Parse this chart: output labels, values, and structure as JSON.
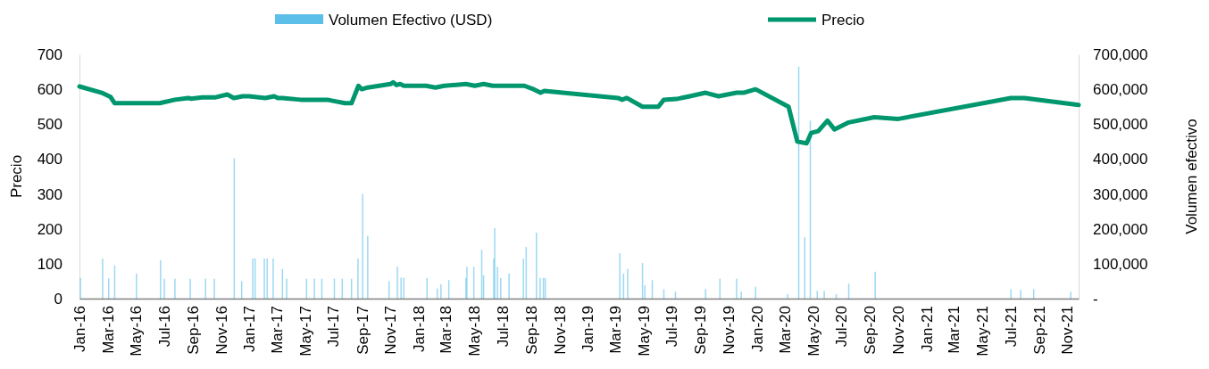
{
  "chart_data": {
    "type": "bar",
    "ylabel": "Precio",
    "y2label": "Volumen efectivo",
    "legend": "top",
    "grid": false,
    "xlim": [
      "2016-01-01",
      "2021-11-26"
    ],
    "xticks": [
      {
        "value": "2016-01",
        "label": "Jan-16"
      },
      {
        "value": "2016-03",
        "label": "Mar-16"
      },
      {
        "value": "2016-05",
        "label": "May-16"
      },
      {
        "value": "2016-07",
        "label": "Jul-16"
      },
      {
        "value": "2016-09",
        "label": "Sep-16"
      },
      {
        "value": "2016-11",
        "label": "Nov-16"
      },
      {
        "value": "2017-01",
        "label": "Jan-17"
      },
      {
        "value": "2017-03",
        "label": "Mar-17"
      },
      {
        "value": "2017-05",
        "label": "May-17"
      },
      {
        "value": "2017-07",
        "label": "Jul-17"
      },
      {
        "value": "2017-09",
        "label": "Sep-17"
      },
      {
        "value": "2017-11",
        "label": "Nov-17"
      },
      {
        "value": "2018-01",
        "label": "Jan-18"
      },
      {
        "value": "2018-03",
        "label": "Mar-18"
      },
      {
        "value": "2018-05",
        "label": "May-18"
      },
      {
        "value": "2018-07",
        "label": "Jul-18"
      },
      {
        "value": "2018-09",
        "label": "Sep-18"
      },
      {
        "value": "2018-11",
        "label": "Nov-18"
      },
      {
        "value": "2019-01",
        "label": "Jan-19"
      },
      {
        "value": "2019-03",
        "label": "Mar-19"
      },
      {
        "value": "2019-05",
        "label": "May-19"
      },
      {
        "value": "2019-07",
        "label": "Jul-19"
      },
      {
        "value": "2019-09",
        "label": "Sep-19"
      },
      {
        "value": "2019-11",
        "label": "Nov-19"
      },
      {
        "value": "2020-01",
        "label": "Jan-20"
      },
      {
        "value": "2020-03",
        "label": "Mar-20"
      },
      {
        "value": "2020-05",
        "label": "May-20"
      },
      {
        "value": "2020-07",
        "label": "Jul-20"
      },
      {
        "value": "2020-09",
        "label": "Sep-20"
      },
      {
        "value": "2020-11",
        "label": "Nov-20"
      },
      {
        "value": "2021-01",
        "label": "Jan-21"
      },
      {
        "value": "2021-03",
        "label": "Mar-21"
      },
      {
        "value": "2021-05",
        "label": "May-21"
      },
      {
        "value": "2021-07",
        "label": "Jul-21"
      },
      {
        "value": "2021-09",
        "label": "Sep-21"
      },
      {
        "value": "2021-11",
        "label": "Nov-21"
      }
    ],
    "ylim": [
      0,
      700
    ],
    "yticks": [
      0,
      100,
      200,
      300,
      400,
      500,
      600,
      700
    ],
    "y2lim": [
      0,
      700000
    ],
    "y2ticks": [
      {
        "value": 0,
        "label": "-"
      },
      {
        "value": 100000,
        "label": "100,000"
      },
      {
        "value": 200000,
        "label": "200,000"
      },
      {
        "value": 300000,
        "label": "300,000"
      },
      {
        "value": 400000,
        "label": "400,000"
      },
      {
        "value": 500000,
        "label": "500,000"
      },
      {
        "value": 600000,
        "label": "600,000"
      },
      {
        "value": 700000,
        "label": "700,000"
      }
    ],
    "series": [
      {
        "name": "Volumen Efectivo (USD)",
        "axis": "y2",
        "color": "#5bbfea",
        "x": [
          "2016-01-03",
          "2016-02-20",
          "2016-03-04",
          "2016-03-17",
          "2016-05-03",
          "2016-06-24",
          "2016-07-02",
          "2016-07-25",
          "2016-08-27",
          "2016-09-29",
          "2016-10-18",
          "2016-11-30",
          "2016-12-16",
          "2017-01-09",
          "2017-01-14",
          "2017-02-03",
          "2017-02-09",
          "2017-02-22",
          "2017-03-14",
          "2017-03-23",
          "2017-05-05",
          "2017-05-22",
          "2017-06-07",
          "2017-07-04",
          "2017-07-21",
          "2017-08-10",
          "2017-08-24",
          "2017-09-03",
          "2017-09-14",
          "2017-10-30",
          "2017-11-17",
          "2017-11-25",
          "2017-12-01",
          "2018-01-20",
          "2018-02-11",
          "2018-02-19",
          "2018-03-08",
          "2018-04-14",
          "2018-04-16",
          "2018-05-01",
          "2018-05-18",
          "2018-05-22",
          "2018-06-13",
          "2018-06-15",
          "2018-06-21",
          "2018-06-28",
          "2018-07-16",
          "2018-08-16",
          "2018-08-22",
          "2018-09-13",
          "2018-09-21",
          "2018-09-28",
          "2018-10-02",
          "2019-03-12",
          "2019-03-20",
          "2019-03-29",
          "2019-04-30",
          "2019-05-05",
          "2019-05-21",
          "2019-06-15",
          "2019-07-10",
          "2019-09-13",
          "2019-10-14",
          "2019-11-19",
          "2019-11-29",
          "2019-12-30",
          "2020-03-08",
          "2020-04-01",
          "2020-04-14",
          "2020-04-26",
          "2020-05-11",
          "2020-05-26",
          "2020-06-21",
          "2020-07-18",
          "2020-09-13",
          "2021-07-03",
          "2021-07-24",
          "2021-08-21",
          "2021-11-09"
        ],
        "values": [
          59000,
          115000,
          58000,
          95000,
          72000,
          110000,
          57000,
          57000,
          57000,
          57000,
          57000,
          402000,
          50000,
          115000,
          115000,
          115000,
          115000,
          115000,
          85000,
          57000,
          57000,
          57000,
          57000,
          57000,
          57000,
          57000,
          115000,
          300000,
          180000,
          50000,
          92000,
          60000,
          60000,
          59000,
          29000,
          41000,
          53000,
          59000,
          91000,
          91000,
          140000,
          67000,
          115000,
          202000,
          91000,
          59000,
          72000,
          115000,
          148000,
          189000,
          59000,
          59000,
          59000,
          130000,
          72000,
          85000,
          102000,
          38000,
          53000,
          27000,
          20000,
          27000,
          57000,
          57000,
          20000,
          34000,
          13000,
          665000,
          176000,
          510000,
          22000,
          22000,
          13000,
          43000,
          77000,
          27000,
          25000,
          27000,
          20000
        ]
      },
      {
        "name": "Precio",
        "type": "line",
        "axis": "y",
        "color": "#00966e",
        "x": [
          "2016-01-01",
          "2016-02-18",
          "2016-03-08",
          "2016-03-17",
          "2016-06-22",
          "2016-07-25",
          "2016-08-23",
          "2016-08-29",
          "2016-09-22",
          "2016-10-21",
          "2016-11-15",
          "2016-11-29",
          "2016-12-18",
          "2017-01-01",
          "2017-02-05",
          "2017-02-24",
          "2017-03-04",
          "2017-03-14",
          "2017-04-22",
          "2017-06-19",
          "2017-07-08",
          "2017-07-27",
          "2017-08-10",
          "2017-08-25",
          "2017-09-01",
          "2017-09-14",
          "2017-11-02",
          "2017-11-08",
          "2017-11-15",
          "2017-11-23",
          "2017-12-01",
          "2018-01-18",
          "2018-02-07",
          "2018-02-26",
          "2018-04-14",
          "2018-05-03",
          "2018-05-22",
          "2018-06-11",
          "2018-08-18",
          "2018-09-07",
          "2018-09-22",
          "2018-09-30",
          "2019-03-08",
          "2019-03-17",
          "2019-03-27",
          "2019-04-30",
          "2019-06-03",
          "2019-06-15",
          "2019-07-12",
          "2019-08-10",
          "2019-09-13",
          "2019-10-11",
          "2019-11-19",
          "2019-12-04",
          "2019-12-30",
          "2020-03-10",
          "2020-03-29",
          "2020-04-18",
          "2020-04-28",
          "2020-05-13",
          "2020-06-02",
          "2020-06-17",
          "2020-07-18",
          "2020-09-11",
          "2020-11-02",
          "2021-07-03",
          "2021-08-01",
          "2021-11-26"
        ],
        "values": [
          608,
          590,
          578,
          560,
          560,
          570,
          575,
          573,
          577,
          577,
          585,
          575,
          580,
          580,
          575,
          580,
          575,
          575,
          570,
          570,
          565,
          560,
          560,
          610,
          600,
          605,
          615,
          620,
          612,
          615,
          610,
          610,
          605,
          610,
          615,
          610,
          615,
          610,
          610,
          600,
          590,
          595,
          575,
          570,
          575,
          550,
          550,
          570,
          572,
          580,
          590,
          580,
          590,
          590,
          600,
          550,
          450,
          445,
          475,
          480,
          510,
          485,
          505,
          520,
          515,
          575,
          575,
          555
        ]
      }
    ]
  }
}
